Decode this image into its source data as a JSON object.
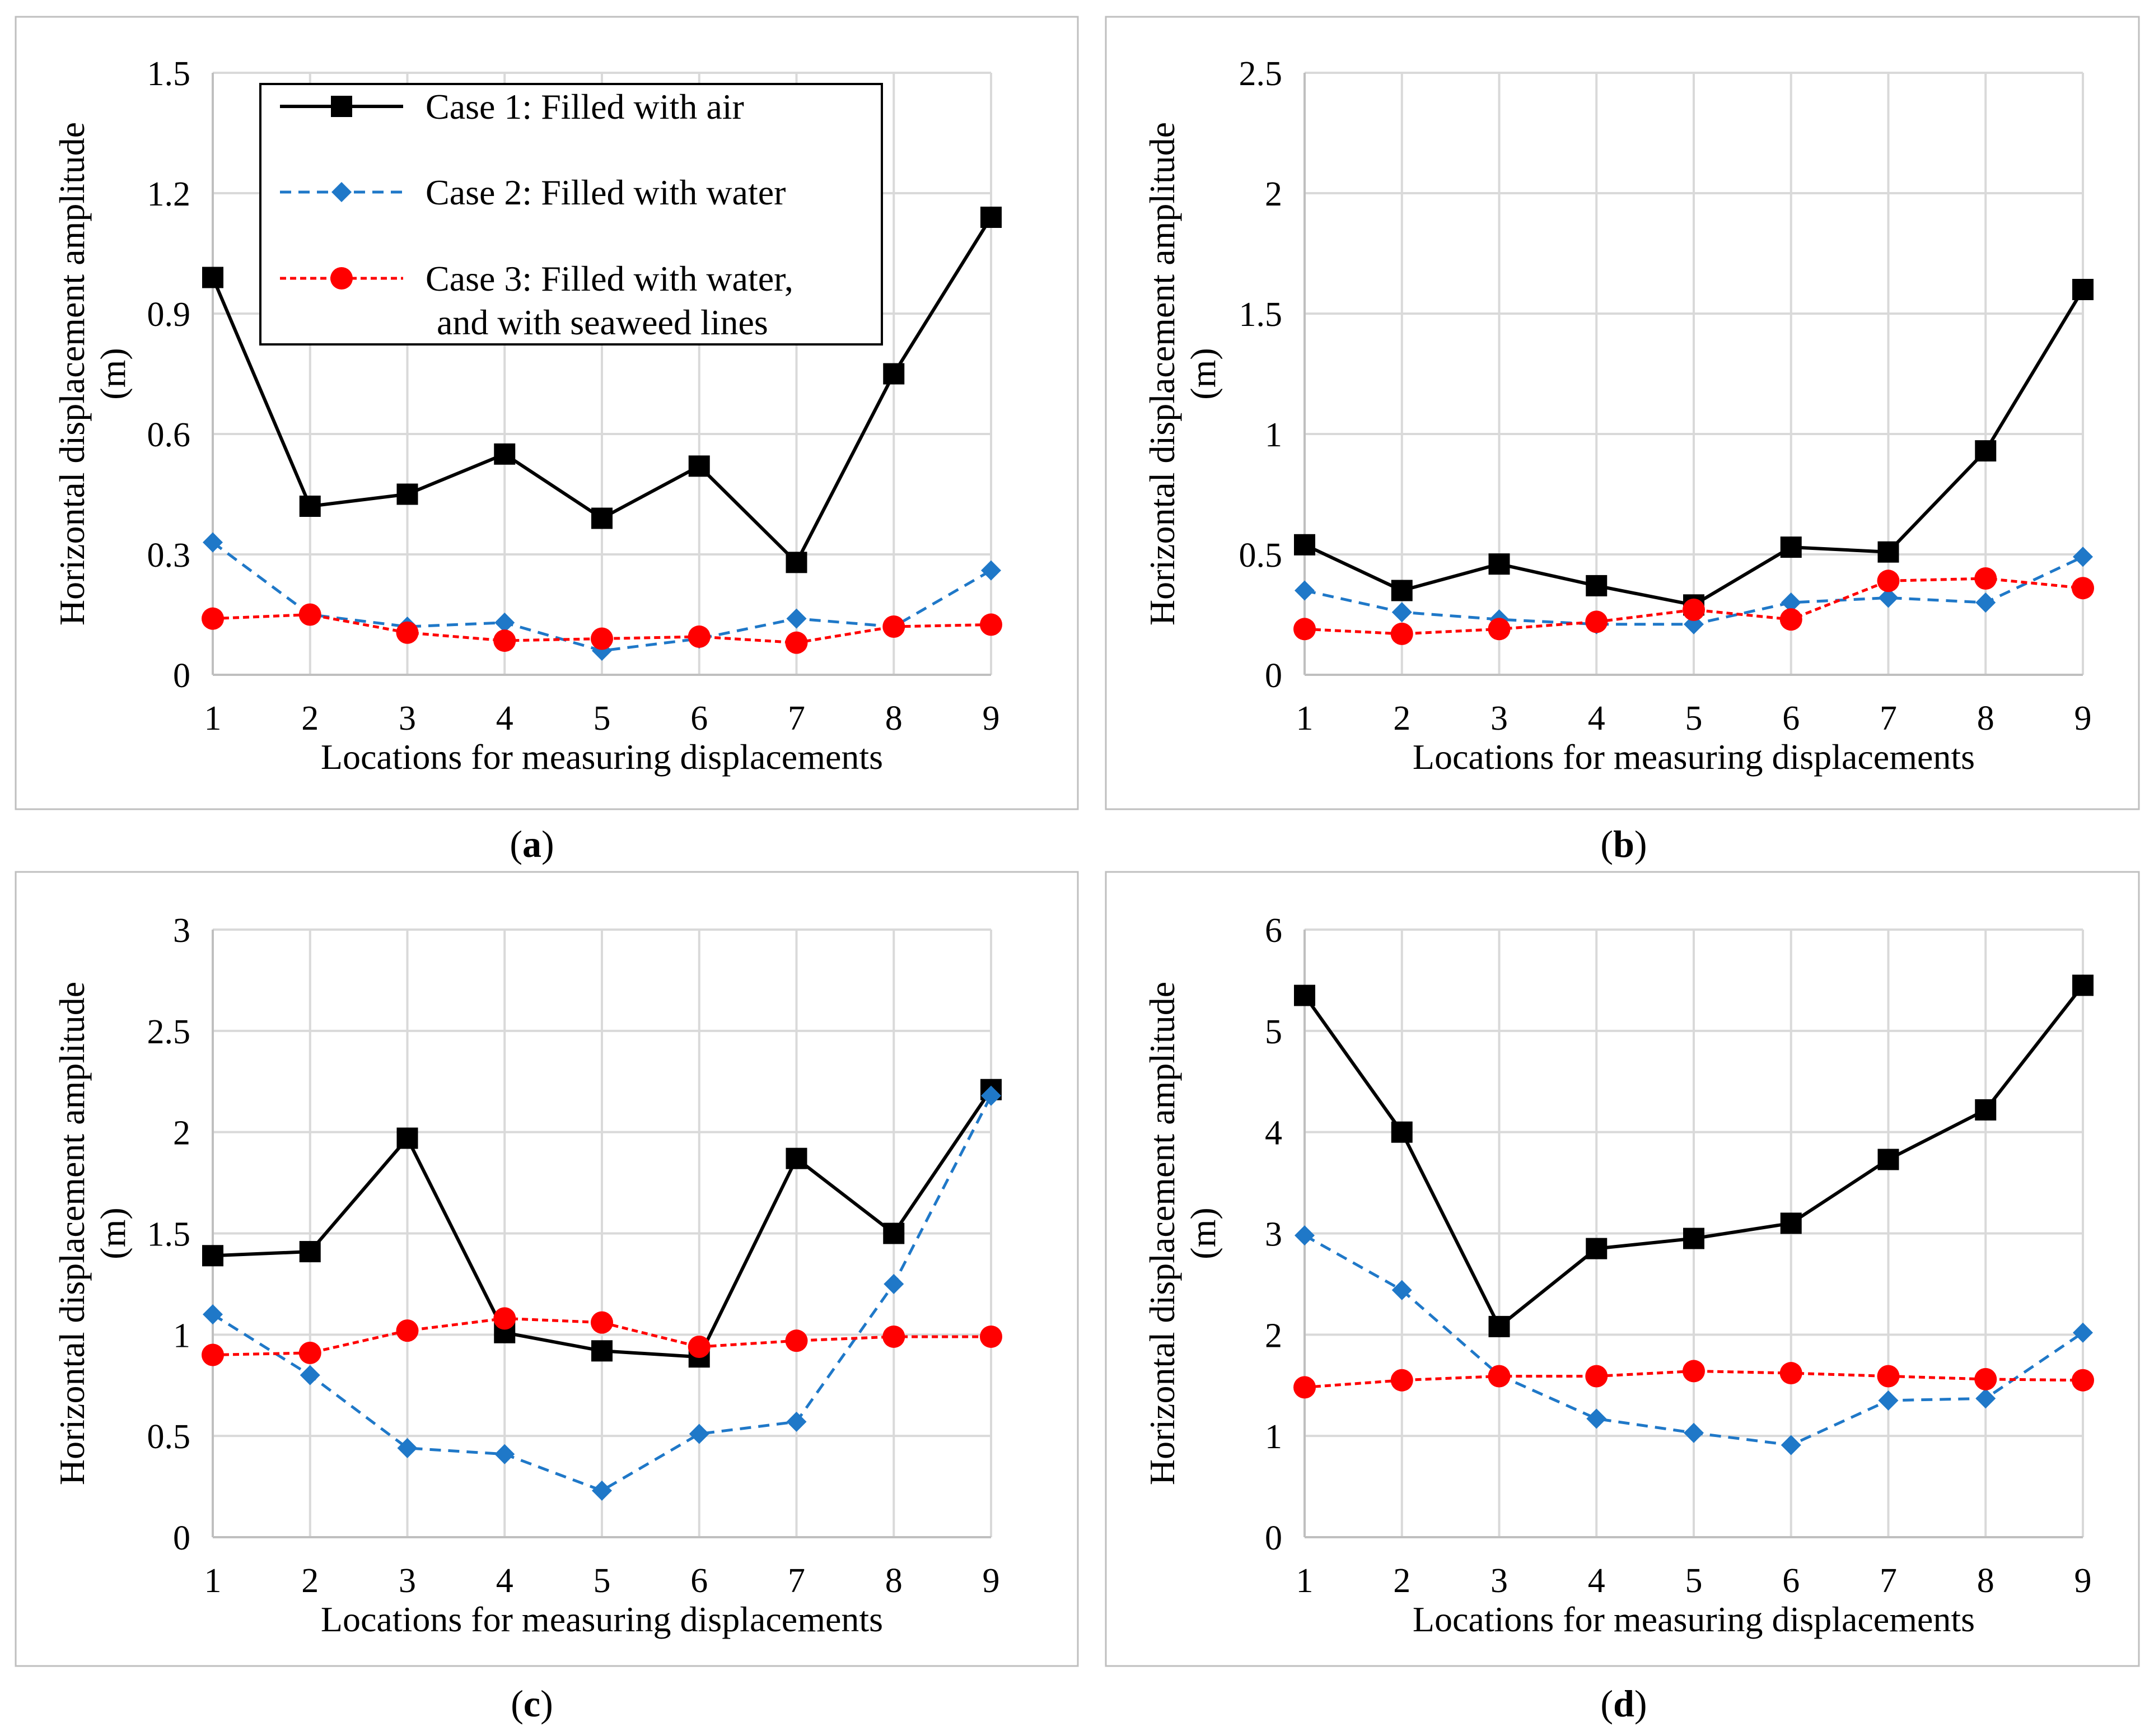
{
  "chart_data": [
    {
      "type": "line",
      "panel_label": "a",
      "title": "",
      "xlabel": "Locations for measuring displacements",
      "ylabel_line1": "Horizontal displacement amplitude",
      "ylabel_line2": "(m)",
      "x": [
        1,
        2,
        3,
        4,
        5,
        6,
        7,
        8,
        9
      ],
      "ylim": [
        0,
        1.5
      ],
      "yticks": [
        "0",
        "0.3",
        "0.6",
        "0.9",
        "1.2",
        "1.5"
      ],
      "grid": true,
      "legend": "top-left",
      "series": [
        {
          "name": "Case 1: Filled with air",
          "color": "#000000",
          "values": [
            0.99,
            0.42,
            0.45,
            0.55,
            0.39,
            0.52,
            0.28,
            0.75,
            1.14
          ]
        },
        {
          "name": "Case 2: Filled with water",
          "color": "#1f78c8",
          "values": [
            0.33,
            0.15,
            0.12,
            0.13,
            0.06,
            0.09,
            0.14,
            0.12,
            0.26
          ]
        },
        {
          "name": "Case 3: Filled with water,",
          "name_line2": "and with seaweed lines",
          "color": "#ff0000",
          "values": [
            0.14,
            0.15,
            0.105,
            0.085,
            0.09,
            0.095,
            0.08,
            0.12,
            0.125
          ]
        }
      ]
    },
    {
      "type": "line",
      "panel_label": "b",
      "title": "",
      "xlabel": "Locations for measuring displacements",
      "ylabel_line1": "Horizontal displacement amplitude",
      "ylabel_line2": "(m)",
      "x": [
        1,
        2,
        3,
        4,
        5,
        6,
        7,
        8,
        9
      ],
      "ylim": [
        0,
        2.5
      ],
      "yticks": [
        "0",
        "0.5",
        "1",
        "1.5",
        "2",
        "2.5"
      ],
      "grid": true,
      "series": [
        {
          "name": "Case 1: Filled with air",
          "color": "#000000",
          "values": [
            0.54,
            0.35,
            0.46,
            0.37,
            0.29,
            0.53,
            0.51,
            0.93,
            1.6
          ]
        },
        {
          "name": "Case 2: Filled with water",
          "color": "#1f78c8",
          "values": [
            0.35,
            0.26,
            0.23,
            0.21,
            0.21,
            0.3,
            0.32,
            0.3,
            0.49
          ]
        },
        {
          "name": "Case 3: Filled with water, and with seaweed lines",
          "color": "#ff0000",
          "values": [
            0.19,
            0.17,
            0.19,
            0.22,
            0.27,
            0.23,
            0.39,
            0.4,
            0.36
          ]
        }
      ]
    },
    {
      "type": "line",
      "panel_label": "c",
      "title": "",
      "xlabel": "Locations for measuring displacements",
      "ylabel_line1": "Horizontal displacement amplitude",
      "ylabel_line2": "(m)",
      "x": [
        1,
        2,
        3,
        4,
        5,
        6,
        7,
        8,
        9
      ],
      "ylim": [
        0,
        3
      ],
      "yticks": [
        "0",
        "0.5",
        "1",
        "1.5",
        "2",
        "2.5",
        "3"
      ],
      "grid": true,
      "series": [
        {
          "name": "Case 1: Filled with air",
          "color": "#000000",
          "values": [
            1.39,
            1.41,
            1.97,
            1.01,
            0.92,
            0.89,
            1.87,
            1.5,
            2.21
          ]
        },
        {
          "name": "Case 2: Filled with water",
          "color": "#1f78c8",
          "values": [
            1.1,
            0.8,
            0.44,
            0.41,
            0.23,
            0.51,
            0.57,
            1.25,
            2.18
          ]
        },
        {
          "name": "Case 3: Filled with water, and with seaweed lines",
          "color": "#ff0000",
          "values": [
            0.9,
            0.91,
            1.02,
            1.08,
            1.06,
            0.94,
            0.97,
            0.99,
            0.99
          ]
        }
      ]
    },
    {
      "type": "line",
      "panel_label": "d",
      "title": "",
      "xlabel": "Locations for measuring displacements",
      "ylabel_line1": "Horizontal displacement amplitude",
      "ylabel_line2": "(m)",
      "x": [
        1,
        2,
        3,
        4,
        5,
        6,
        7,
        8,
        9
      ],
      "ylim": [
        0,
        6
      ],
      "yticks": [
        "0",
        "1",
        "2",
        "3",
        "4",
        "5",
        "6"
      ],
      "grid": true,
      "series": [
        {
          "name": "Case 1: Filled with air",
          "color": "#000000",
          "values": [
            5.35,
            4.0,
            2.08,
            2.85,
            2.95,
            3.1,
            3.73,
            4.22,
            5.45
          ]
        },
        {
          "name": "Case 2: Filled with water",
          "color": "#1f78c8",
          "values": [
            2.98,
            2.44,
            1.6,
            1.17,
            1.03,
            0.91,
            1.35,
            1.37,
            2.02
          ]
        },
        {
          "name": "Case 3: Filled with water, and with seaweed lines",
          "color": "#ff0000",
          "values": [
            1.48,
            1.55,
            1.59,
            1.59,
            1.64,
            1.62,
            1.59,
            1.56,
            1.55
          ]
        }
      ]
    }
  ]
}
